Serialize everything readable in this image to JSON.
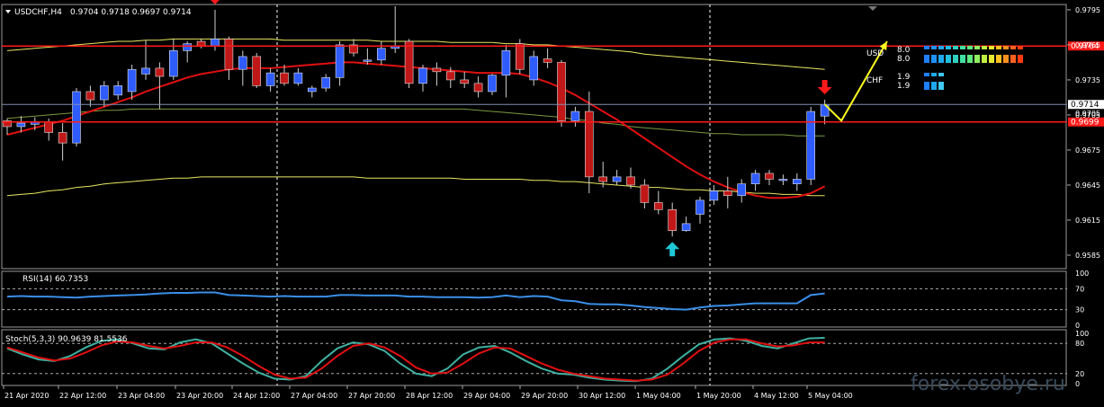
{
  "header": {
    "symbol_text": "USDCHF,H4",
    "ohlc_text": "0.9704 0.9718 0.9697 0.9714"
  },
  "colors": {
    "background": "#000000",
    "bull_candle": "#2f5cff",
    "bear_candle": "#c01818",
    "ma_red": "#e01010",
    "ma_green": "#7a9a40",
    "ma_yellow": "#e8e860",
    "level_line": "#ff1a1a",
    "grid": "#ffffff",
    "rsi_line": "#3a8fe8",
    "stoch_main": "#40b0a0",
    "stoch_signal": "#e01010",
    "arrow_down": "#ff1a1a",
    "arrow_up": "#20c8d8",
    "projection": "#ffff20"
  },
  "chart_data": {
    "type": "candlestick",
    "ylim": [
      0.9575,
      0.9798
    ],
    "y_ticks": [
      "0.9795",
      "0.9765",
      "0.9735",
      "0.9705",
      "0.9675",
      "0.9645",
      "0.9615",
      "0.9585"
    ],
    "x_ticks": [
      "21 Apr 2020",
      "22 Apr 12:00",
      "23 Apr 04:00",
      "23 Apr 20:00",
      "24 Apr 12:00",
      "27 Apr 04:00",
      "27 Apr 20:00",
      "28 Apr 12:00",
      "29 Apr 04:00",
      "29 Apr 20:00",
      "30 Apr 12:00",
      "1 May 04:00",
      "1 May 20:00",
      "4 May 12:00",
      "5 May 04:00"
    ],
    "candles": [
      [
        0.97,
        0.9702,
        0.9688,
        0.9695
      ],
      [
        0.9695,
        0.9704,
        0.969,
        0.9698
      ],
      [
        0.9697,
        0.9703,
        0.9692,
        0.9699
      ],
      [
        0.9699,
        0.9702,
        0.9683,
        0.969
      ],
      [
        0.969,
        0.9698,
        0.9666,
        0.9681
      ],
      [
        0.9681,
        0.9728,
        0.9678,
        0.9725
      ],
      [
        0.9725,
        0.973,
        0.9712,
        0.9718
      ],
      [
        0.9718,
        0.9734,
        0.9712,
        0.973
      ],
      [
        0.9722,
        0.9734,
        0.9718,
        0.973
      ],
      [
        0.9725,
        0.9748,
        0.9718,
        0.9744
      ],
      [
        0.974,
        0.9769,
        0.9735,
        0.9745
      ],
      [
        0.9745,
        0.975,
        0.971,
        0.9738
      ],
      [
        0.9738,
        0.977,
        0.9735,
        0.976
      ],
      [
        0.976,
        0.9768,
        0.975,
        0.9766
      ],
      [
        0.9768,
        0.977,
        0.9762,
        0.9764
      ],
      [
        0.9764,
        0.9795,
        0.976,
        0.977
      ],
      [
        0.977,
        0.9772,
        0.9735,
        0.9744
      ],
      [
        0.9744,
        0.976,
        0.973,
        0.9755
      ],
      [
        0.9755,
        0.9758,
        0.9728,
        0.973
      ],
      [
        0.973,
        0.9745,
        0.9725,
        0.9741
      ],
      [
        0.9741,
        0.9748,
        0.973,
        0.9732
      ],
      [
        0.9732,
        0.9745,
        0.973,
        0.9741
      ],
      [
        0.9725,
        0.973,
        0.972,
        0.9728
      ],
      [
        0.9728,
        0.974,
        0.9725,
        0.9737
      ],
      [
        0.9737,
        0.9768,
        0.973,
        0.9765
      ],
      [
        0.9765,
        0.977,
        0.9755,
        0.9758
      ],
      [
        0.9752,
        0.9762,
        0.9748,
        0.9752
      ],
      [
        0.9752,
        0.9768,
        0.9748,
        0.9762
      ],
      [
        0.9762,
        0.9798,
        0.9758,
        0.9764
      ],
      [
        0.9768,
        0.977,
        0.9728,
        0.9732
      ],
      [
        0.9732,
        0.9748,
        0.9725,
        0.9745
      ],
      [
        0.9745,
        0.975,
        0.973,
        0.9742
      ],
      [
        0.9742,
        0.9746,
        0.9728,
        0.9735
      ],
      [
        0.9735,
        0.9742,
        0.9728,
        0.9732
      ],
      [
        0.9732,
        0.9738,
        0.972,
        0.9725
      ],
      [
        0.9725,
        0.974,
        0.9722,
        0.9739
      ],
      [
        0.9739,
        0.9765,
        0.972,
        0.976
      ],
      [
        0.9766,
        0.977,
        0.974,
        0.9744
      ],
      [
        0.9735,
        0.976,
        0.973,
        0.9755
      ],
      [
        0.9753,
        0.9762,
        0.9745,
        0.975
      ],
      [
        0.975,
        0.9752,
        0.9695,
        0.97
      ],
      [
        0.97,
        0.9712,
        0.9695,
        0.9708
      ],
      [
        0.9708,
        0.9725,
        0.9638,
        0.9652
      ],
      [
        0.9652,
        0.9665,
        0.9643,
        0.9648
      ],
      [
        0.9648,
        0.9658,
        0.9645,
        0.9652
      ],
      [
        0.9652,
        0.966,
        0.9642,
        0.9645
      ],
      [
        0.9645,
        0.965,
        0.9625,
        0.963
      ],
      [
        0.963,
        0.964,
        0.962,
        0.9624
      ],
      [
        0.9624,
        0.963,
        0.9601,
        0.9606
      ],
      [
        0.9606,
        0.9618,
        0.9605,
        0.9612
      ],
      [
        0.962,
        0.9635,
        0.9612,
        0.9632
      ],
      [
        0.9632,
        0.9645,
        0.9628,
        0.964
      ],
      [
        0.964,
        0.9652,
        0.9625,
        0.9636
      ],
      [
        0.9636,
        0.965,
        0.963,
        0.9646
      ],
      [
        0.9646,
        0.9658,
        0.964,
        0.9655
      ],
      [
        0.9655,
        0.9658,
        0.9645,
        0.965
      ],
      [
        0.965,
        0.9654,
        0.9645,
        0.965
      ],
      [
        0.9646,
        0.9655,
        0.964,
        0.965
      ],
      [
        0.965,
        0.9712,
        0.9645,
        0.9708
      ],
      [
        0.9704,
        0.9718,
        0.9697,
        0.9714
      ]
    ],
    "ma_red": [
      0.9688,
      0.9691,
      0.9694,
      0.9697,
      0.97,
      0.9704,
      0.9708,
      0.9712,
      0.9716,
      0.972,
      0.9725,
      0.9729,
      0.9733,
      0.9737,
      0.974,
      0.9742,
      0.9744,
      0.9745,
      0.9745,
      0.9745,
      0.9746,
      0.9747,
      0.9748,
      0.9749,
      0.975,
      0.975,
      0.9749,
      0.9748,
      0.9747,
      0.9746,
      0.9745,
      0.9744,
      0.9743,
      0.9742,
      0.9741,
      0.9741,
      0.9741,
      0.974,
      0.9737,
      0.9733,
      0.9728,
      0.9722,
      0.9715,
      0.9708,
      0.9701,
      0.9693,
      0.9685,
      0.9677,
      0.9669,
      0.9661,
      0.9654,
      0.9648,
      0.9643,
      0.9639,
      0.9636,
      0.9634,
      0.9634,
      0.9635,
      0.9638,
      0.9644
    ],
    "ma_green": [
      0.9702,
      0.9703,
      0.9704,
      0.9705,
      0.9706,
      0.9707,
      0.9708,
      0.9709,
      0.9709,
      0.971,
      0.971,
      0.971,
      0.971,
      0.971,
      0.971,
      0.971,
      0.971,
      0.971,
      0.971,
      0.971,
      0.971,
      0.971,
      0.971,
      0.971,
      0.971,
      0.971,
      0.971,
      0.971,
      0.971,
      0.971,
      0.971,
      0.971,
      0.971,
      0.971,
      0.9709,
      0.9708,
      0.9707,
      0.9706,
      0.9705,
      0.9704,
      0.9703,
      0.9701,
      0.97,
      0.9698,
      0.9697,
      0.9695,
      0.9694,
      0.9693,
      0.9692,
      0.9691,
      0.969,
      0.9689,
      0.9689,
      0.9688,
      0.9688,
      0.9688,
      0.9688,
      0.9687,
      0.9687,
      0.9687
    ],
    "ma_yellow_upper": [
      0.976,
      0.9761,
      0.9762,
      0.9763,
      0.9764,
      0.9765,
      0.9766,
      0.9767,
      0.9768,
      0.9768,
      0.9769,
      0.9769,
      0.977,
      0.977,
      0.977,
      0.977,
      0.977,
      0.977,
      0.977,
      0.977,
      0.9769,
      0.9769,
      0.9769,
      0.9769,
      0.9769,
      0.9769,
      0.9769,
      0.9768,
      0.9768,
      0.9768,
      0.9768,
      0.9768,
      0.9767,
      0.9767,
      0.9767,
      0.9767,
      0.9766,
      0.9766,
      0.9765,
      0.9765,
      0.9764,
      0.9763,
      0.9762,
      0.9761,
      0.976,
      0.9759,
      0.9757,
      0.9756,
      0.9755,
      0.9754,
      0.9753,
      0.9752,
      0.9751,
      0.975,
      0.9749,
      0.9748,
      0.9747,
      0.9746,
      0.9745,
      0.9744
    ],
    "ma_yellow_lower": [
      0.9636,
      0.9637,
      0.9638,
      0.964,
      0.9641,
      0.9643,
      0.9644,
      0.9646,
      0.9647,
      0.9648,
      0.9649,
      0.965,
      0.9651,
      0.9651,
      0.9652,
      0.9652,
      0.9652,
      0.9652,
      0.9652,
      0.9652,
      0.9652,
      0.9652,
      0.9652,
      0.9652,
      0.9652,
      0.9652,
      0.9651,
      0.9651,
      0.9651,
      0.9651,
      0.9651,
      0.9651,
      0.9651,
      0.965,
      0.965,
      0.965,
      0.965,
      0.965,
      0.9649,
      0.9649,
      0.9648,
      0.9648,
      0.9647,
      0.9646,
      0.9645,
      0.9644,
      0.9643,
      0.9643,
      0.9642,
      0.9641,
      0.9641,
      0.964,
      0.964,
      0.9639,
      0.9638,
      0.9638,
      0.9637,
      0.9637,
      0.9636,
      0.9636
    ],
    "levels": [
      {
        "value": 0.9764,
        "label": "0.9764",
        "kind": "resistance"
      },
      {
        "value": 0.9699,
        "label": "0.9699",
        "kind": "support"
      }
    ],
    "current_price": {
      "value": 0.9714,
      "label": "0.9714"
    },
    "tick_0705_label": "0.9705",
    "signals": [
      {
        "index": 15,
        "type": "sell"
      },
      {
        "index": 48,
        "type": "buy"
      },
      {
        "index": 59,
        "type": "sell"
      }
    ],
    "projection": {
      "points": [
        [
          59,
          0.9714
        ],
        [
          60.2,
          0.97
        ],
        [
          63.5,
          0.9768
        ]
      ]
    },
    "strength_meter": {
      "usd": {
        "label": "USD",
        "value_a": "8.0",
        "value_b": "8.0",
        "bars": 14
      },
      "chf": {
        "label": "CHF",
        "value_a": "1.9",
        "value_b": "1.9",
        "bars": 3
      }
    },
    "rsi": {
      "label": "RSI(14) 60.7353",
      "ylim": [
        0,
        100
      ],
      "y_ticks": [
        "100",
        "70",
        "30",
        "0"
      ],
      "levels": [
        70,
        30
      ],
      "values": [
        55,
        56,
        55,
        55,
        54,
        53,
        55,
        56,
        57,
        58,
        59,
        61,
        62,
        62,
        63,
        63,
        58,
        57,
        56,
        55,
        56,
        55,
        55,
        55,
        58,
        58,
        57,
        57,
        57,
        55,
        55,
        54,
        54,
        54,
        53,
        54,
        57,
        54,
        56,
        55,
        48,
        46,
        41,
        40,
        40,
        38,
        35,
        33,
        31,
        30,
        34,
        37,
        38,
        40,
        42,
        42,
        42,
        42,
        58,
        61
      ]
    },
    "stoch": {
      "label": "Stoch(5,3,3) 90.9639 81.5536",
      "ylim": [
        0,
        100
      ],
      "y_ticks": [
        "100",
        "80",
        "20",
        "0"
      ],
      "levels": [
        80,
        20
      ],
      "main": [
        70,
        58,
        48,
        45,
        55,
        72,
        85,
        88,
        80,
        70,
        68,
        82,
        88,
        80,
        60,
        40,
        22,
        10,
        8,
        15,
        45,
        70,
        82,
        78,
        65,
        40,
        20,
        15,
        30,
        58,
        72,
        75,
        62,
        45,
        30,
        20,
        18,
        12,
        8,
        6,
        5,
        10,
        30,
        55,
        78,
        88,
        90,
        85,
        75,
        70,
        80,
        90,
        91
      ],
      "signal": [
        72,
        62,
        52,
        46,
        50,
        62,
        76,
        84,
        82,
        75,
        70,
        75,
        82,
        82,
        72,
        55,
        35,
        18,
        10,
        12,
        30,
        55,
        75,
        80,
        72,
        55,
        32,
        20,
        22,
        40,
        60,
        72,
        70,
        55,
        40,
        28,
        20,
        15,
        10,
        8,
        6,
        8,
        18,
        40,
        65,
        82,
        88,
        88,
        80,
        74,
        76,
        82,
        82
      ]
    }
  },
  "watermark": "forex.osobye.ru"
}
